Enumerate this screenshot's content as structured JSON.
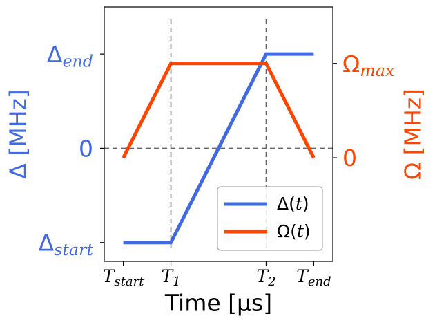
{
  "chart_data": {
    "type": "line",
    "xlabel": "Time [μs]",
    "x_ticks": [
      {
        "x": 0,
        "main": "T",
        "sub": "start"
      },
      {
        "x": 1,
        "main": "T",
        "sub": "1"
      },
      {
        "x": 3,
        "main": "T",
        "sub": "2"
      },
      {
        "x": 4,
        "main": "T",
        "sub": "end"
      }
    ],
    "xlim": [
      -0.4,
      4.4
    ],
    "left_axis": {
      "label": "Δ [MHz]",
      "color": "#4169E1",
      "ylim": [
        -1.2,
        1.5
      ],
      "ticks": [
        {
          "y": 1,
          "main": "Δ",
          "sub": "end"
        },
        {
          "y": 0,
          "main": "0",
          "sub": ""
        },
        {
          "y": -1,
          "main": "Δ",
          "sub": "start"
        }
      ]
    },
    "right_axis": {
      "label": "Ω [MHz]",
      "color": "#FF4500",
      "ylim": [
        -1.1,
        1.6
      ],
      "ticks": [
        {
          "y": 1,
          "main": "Ω",
          "sub": "max"
        },
        {
          "y": 0,
          "main": "0",
          "sub": ""
        }
      ]
    },
    "series": [
      {
        "name": "Δ(t)",
        "axis": "left",
        "color": "#4169E1",
        "x": [
          0,
          1,
          3,
          4
        ],
        "y": [
          -1,
          -1,
          1,
          1
        ]
      },
      {
        "name": "Ω(t)",
        "axis": "right",
        "color": "#FF4500",
        "x": [
          0,
          1,
          3,
          4
        ],
        "y": [
          0,
          1,
          1,
          0
        ]
      }
    ],
    "reference_lines": {
      "vertical_x": [
        1,
        3
      ],
      "horizontal_y": 0,
      "style": "dashed",
      "color": "#666666"
    },
    "legend": {
      "position": "bottom-right",
      "entries": [
        {
          "name_main": "Δ(",
          "name_var": "t",
          "name_end": ")",
          "color": "#4169E1"
        },
        {
          "name_main": "Ω(",
          "name_var": "t",
          "name_end": ")",
          "color": "#FF4500"
        }
      ]
    },
    "grid": false
  }
}
